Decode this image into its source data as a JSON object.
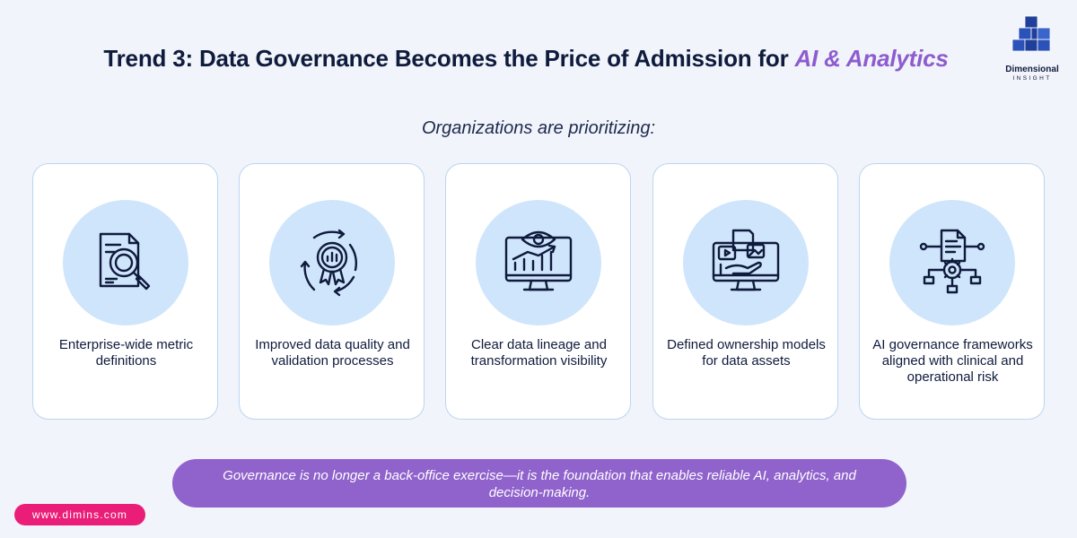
{
  "header": {
    "title_main": "Trend 3: Data Governance Becomes the Price of Admission for ",
    "title_accent": "AI & Analytics",
    "accent_color": "#8d5ccf"
  },
  "logo": {
    "name": "Dimensional",
    "sub": "INSIGHT",
    "icon": "cube-stack-logo"
  },
  "subtitle": "Organizations are prioritizing:",
  "cards": [
    {
      "icon": "document-magnifier-icon",
      "label": "Enterprise-wide metric definitions"
    },
    {
      "icon": "quality-badge-cycle-icon",
      "label": "Improved data quality and validation processes"
    },
    {
      "icon": "monitor-eye-chart-icon",
      "label": "Clear data lineage and transformation visibility"
    },
    {
      "icon": "monitor-hand-media-icon",
      "label": "Defined ownership models for data assets"
    },
    {
      "icon": "document-gear-network-icon",
      "label": "AI governance frameworks aligned with clinical and operational risk"
    }
  ],
  "banner": {
    "text": "Governance is no longer a back-office exercise—it is the foundation that enables reliable AI, analytics, and decision-making.",
    "color": "#8f62cc"
  },
  "footer": {
    "url": "www.dimins.com",
    "color": "#ea1e78"
  }
}
